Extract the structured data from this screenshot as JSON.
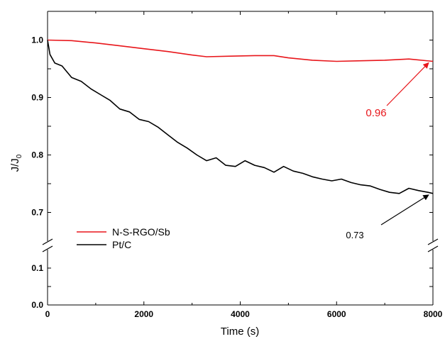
{
  "chart_data": {
    "type": "line",
    "title": "",
    "xlabel": "Time (s)",
    "ylabel_main": "J/J",
    "ylabel_sub": "0",
    "xlim": [
      0,
      8000
    ],
    "x_ticks": [
      {
        "value": 0,
        "label": "0"
      },
      {
        "value": 2000,
        "label": "2000"
      },
      {
        "value": 4000,
        "label": "4000"
      },
      {
        "value": 6000,
        "label": "6000"
      },
      {
        "value": 8000,
        "label": "8000"
      }
    ],
    "y_axis": {
      "broken": true,
      "upper_range": [
        0.65,
        1.05
      ],
      "lower_range": [
        0.0,
        0.15
      ],
      "upper_ticks": [
        {
          "value": 0.7,
          "label": "0.7"
        },
        {
          "value": 0.8,
          "label": "0.8"
        },
        {
          "value": 0.9,
          "label": "0.9"
        },
        {
          "value": 1.0,
          "label": "1.0"
        }
      ],
      "lower_ticks": [
        {
          "value": 0.0,
          "label": "0.0"
        },
        {
          "value": 0.1,
          "label": "0.1"
        }
      ]
    },
    "legend_position": "bottom-left",
    "series": [
      {
        "name": "N-S-RGO/Sb",
        "color": "#e8161b",
        "x": [
          0,
          500,
          1000,
          1500,
          2000,
          2500,
          3000,
          3300,
          3800,
          4300,
          4700,
          5000,
          5500,
          6000,
          6500,
          7000,
          7500,
          8000
        ],
        "y": [
          1.0,
          0.999,
          0.995,
          0.99,
          0.985,
          0.98,
          0.974,
          0.971,
          0.972,
          0.973,
          0.973,
          0.969,
          0.965,
          0.963,
          0.964,
          0.965,
          0.967,
          0.963
        ]
      },
      {
        "name": "Pt/C",
        "color": "#000000",
        "x": [
          0,
          50,
          150,
          300,
          500,
          700,
          900,
          1100,
          1300,
          1500,
          1700,
          1900,
          2100,
          2300,
          2500,
          2700,
          2900,
          3100,
          3300,
          3500,
          3700,
          3900,
          4100,
          4300,
          4500,
          4700,
          4900,
          5100,
          5300,
          5500,
          5700,
          5900,
          6100,
          6300,
          6500,
          6700,
          6900,
          7100,
          7300,
          7500,
          7700,
          7900,
          8000
        ],
        "y": [
          1.0,
          0.975,
          0.96,
          0.955,
          0.935,
          0.928,
          0.915,
          0.905,
          0.895,
          0.88,
          0.875,
          0.862,
          0.858,
          0.848,
          0.835,
          0.822,
          0.812,
          0.8,
          0.79,
          0.795,
          0.782,
          0.78,
          0.79,
          0.782,
          0.778,
          0.77,
          0.78,
          0.772,
          0.768,
          0.762,
          0.758,
          0.755,
          0.758,
          0.752,
          0.748,
          0.746,
          0.74,
          0.735,
          0.733,
          0.742,
          0.738,
          0.735,
          0.733
        ]
      }
    ],
    "annotations": [
      {
        "text": "0.96",
        "color": "#e8161b",
        "target_x": 8000,
        "target_y": 0.963
      },
      {
        "text": "0.73",
        "color": "#000000",
        "target_x": 8000,
        "target_y": 0.733
      }
    ]
  }
}
